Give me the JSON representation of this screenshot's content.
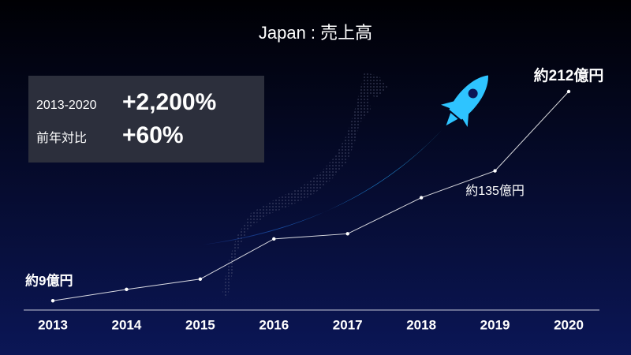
{
  "chart_data": {
    "type": "line",
    "title": "Japan : 売上高",
    "categories": [
      "2013",
      "2014",
      "2015",
      "2016",
      "2017",
      "2018",
      "2019",
      "2020"
    ],
    "values": [
      9,
      20,
      30,
      69,
      74,
      109,
      135,
      212
    ],
    "value_labels": [
      "約9億円",
      null,
      null,
      null,
      null,
      null,
      "約135億円",
      "約212億円"
    ],
    "color": "#ffffff",
    "highlights": [
      {
        "label": "2013-2020",
        "value": "+2,200%"
      },
      {
        "label": "前年対比",
        "value": "+60%"
      }
    ]
  }
}
